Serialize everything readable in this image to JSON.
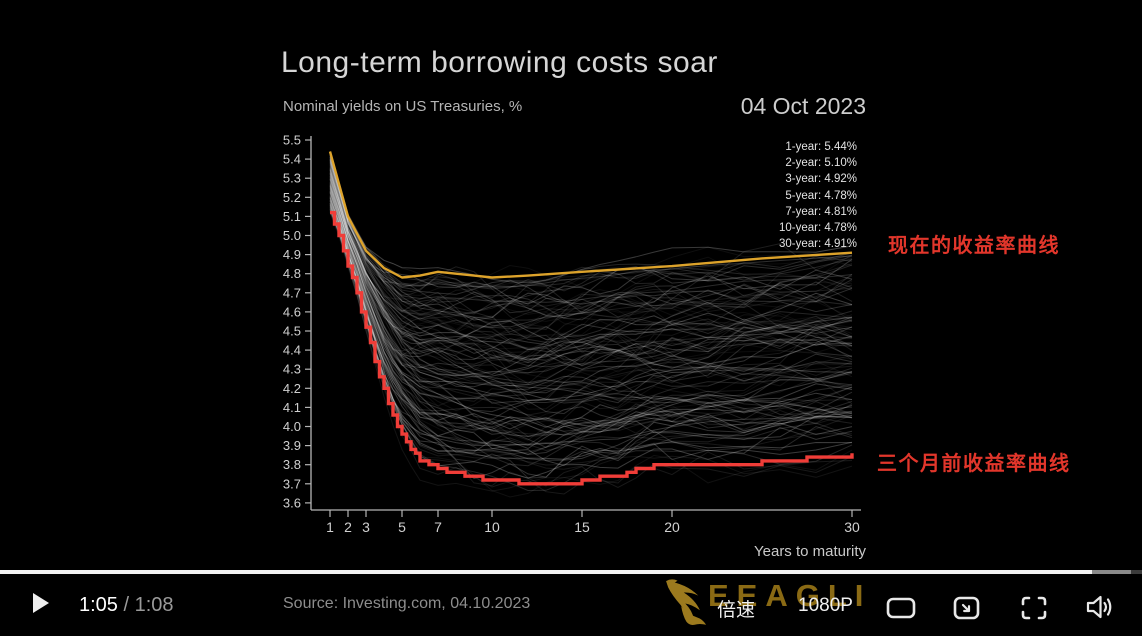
{
  "chart_data": {
    "type": "line",
    "title": "Long-term borrowing costs soar",
    "subtitle": "Nominal yields on US Treasuries, %",
    "date_label": "04 Oct 2023",
    "xlabel": "Years to maturity",
    "source": "Source: Investing.com, 04.10.2023",
    "xlim": [
      1,
      30
    ],
    "ylim": [
      3.6,
      5.5
    ],
    "x_ticks": [
      1,
      2,
      3,
      5,
      7,
      10,
      15,
      20,
      30
    ],
    "y_ticks": [
      "5.5",
      "5.4",
      "5.3",
      "5.2",
      "5.1",
      "5.0",
      "4.9",
      "4.8",
      "4.7",
      "4.6",
      "4.5",
      "4.4",
      "4.3",
      "4.2",
      "4.1",
      "4.0",
      "3.9",
      "3.8",
      "3.7",
      "3.6"
    ],
    "yield_labels": [
      "1-year: 5.44%",
      "2-year: 5.10%",
      "3-year: 4.92%",
      "5-year: 4.78%",
      "7-year: 4.81%",
      "10-year: 4.78%",
      "30-year: 4.91%"
    ],
    "series": [
      {
        "name": "current-yield-curve",
        "color": "#dda32b",
        "width": 2.4,
        "style": "smooth",
        "x": [
          1,
          2,
          3,
          4,
          5,
          6,
          7,
          8,
          9,
          10,
          12,
          15,
          20,
          25,
          30
        ],
        "y": [
          5.44,
          5.1,
          4.92,
          4.83,
          4.78,
          4.79,
          4.81,
          4.8,
          4.79,
          4.78,
          4.79,
          4.81,
          4.84,
          4.88,
          4.91
        ]
      },
      {
        "name": "three-months-ago-yield-curve",
        "color": "#f03d38",
        "width": 3.4,
        "style": "stepped",
        "x": [
          1,
          1.5,
          2,
          2.5,
          3,
          3.5,
          4,
          4.5,
          5,
          6,
          7,
          8,
          9,
          10,
          11,
          12,
          13,
          14,
          15,
          16,
          17,
          18,
          19,
          20,
          22,
          24,
          25,
          26,
          27,
          28,
          29,
          30
        ],
        "y": [
          5.12,
          5.0,
          4.85,
          4.7,
          4.52,
          4.35,
          4.19,
          4.06,
          3.96,
          3.82,
          3.77,
          3.75,
          3.73,
          3.72,
          3.71,
          3.69,
          3.69,
          3.7,
          3.71,
          3.73,
          3.74,
          3.77,
          3.79,
          3.8,
          3.8,
          3.8,
          3.81,
          3.82,
          3.82,
          3.84,
          3.84,
          3.85
        ]
      }
    ],
    "background_curves": {
      "description": "daily historical yield curves of the last 3 months",
      "count": 118,
      "color": "#ffffff",
      "seed": 7,
      "opacity_min": 0.05,
      "opacity_max": 0.24
    },
    "axis_color": "#b5b5b5",
    "legend_position": "none",
    "grid": false
  },
  "annotations": {
    "current_curve": "现在的收益率曲线",
    "previous_curve": "三个月前收益率曲线",
    "color": "#e2362b"
  },
  "player": {
    "time_current": "1:05",
    "time_separator": " / ",
    "time_duration": "1:08",
    "progress_percent": 95.6,
    "buffer_percent": 99,
    "speed_label": "倍速",
    "quality_label": "1080P",
    "watermark_text": "EEAGLI",
    "watermark_gold": "#9c7a1e",
    "icon_color": "#e8e8e8",
    "icons": [
      "play-icon",
      "theater-mode-icon",
      "picture-in-picture-icon",
      "fullscreen-icon",
      "volume-icon"
    ]
  }
}
